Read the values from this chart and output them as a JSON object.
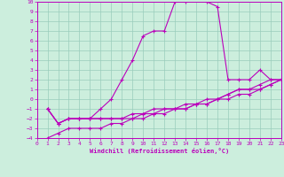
{
  "title": "",
  "xlabel": "Windchill (Refroidissement éolien,°C)",
  "ylabel": "",
  "bg_color": "#cceedd",
  "grid_color": "#99ccbb",
  "line_color": "#bb00bb",
  "xlim": [
    0,
    23
  ],
  "ylim": [
    -4,
    10
  ],
  "xticks": [
    0,
    1,
    2,
    3,
    4,
    5,
    6,
    7,
    8,
    9,
    10,
    11,
    12,
    13,
    14,
    15,
    16,
    17,
    18,
    19,
    20,
    21,
    22,
    23
  ],
  "yticks": [
    -4,
    -3,
    -2,
    -1,
    0,
    1,
    2,
    3,
    4,
    5,
    6,
    7,
    8,
    9,
    10
  ],
  "line1_x": [
    1,
    2,
    3,
    4,
    5,
    6,
    7,
    8,
    9,
    10,
    11,
    12,
    13,
    14,
    15,
    16,
    17,
    18,
    19,
    20,
    21,
    22,
    23
  ],
  "line1_y": [
    -1,
    -2.5,
    -2,
    -2,
    -2,
    -1,
    0,
    2,
    4,
    6.5,
    7,
    7,
    10,
    10,
    11,
    10,
    9.5,
    2,
    2,
    2,
    3,
    2,
    2
  ],
  "line2_x": [
    1,
    2,
    3,
    4,
    5,
    6,
    7,
    8,
    9,
    10,
    11,
    12,
    13,
    14,
    15,
    16,
    17,
    18,
    19,
    20,
    21,
    22,
    23
  ],
  "line2_y": [
    -1,
    -2.5,
    -2,
    -2,
    -2,
    -2,
    -2,
    -2,
    -2,
    -1.5,
    -1.5,
    -1,
    -1,
    -1,
    -0.5,
    -0.5,
    0,
    0.5,
    1,
    1,
    1.5,
    2,
    2
  ],
  "line3_x": [
    1,
    2,
    3,
    4,
    5,
    6,
    7,
    8,
    9,
    10,
    11,
    12,
    13,
    14,
    15,
    16,
    17,
    18,
    19,
    20,
    21,
    22,
    23
  ],
  "line3_y": [
    -1,
    -2.5,
    -2,
    -2,
    -2,
    -2,
    -2,
    -2,
    -1.5,
    -1.5,
    -1,
    -1,
    -1,
    -0.5,
    -0.5,
    0,
    0,
    0.5,
    1,
    1,
    1,
    1.5,
    2
  ],
  "line4_x": [
    1,
    2,
    3,
    4,
    5,
    6,
    7,
    8,
    9,
    10,
    11,
    12,
    13,
    14,
    15,
    16,
    17,
    18,
    19,
    20,
    21,
    22,
    23
  ],
  "line4_y": [
    -4,
    -3.5,
    -3,
    -3,
    -3,
    -3,
    -2.5,
    -2.5,
    -2,
    -2,
    -1.5,
    -1.5,
    -1,
    -1,
    -0.5,
    -0.5,
    0,
    0,
    0.5,
    0.5,
    1,
    1.5,
    2
  ]
}
